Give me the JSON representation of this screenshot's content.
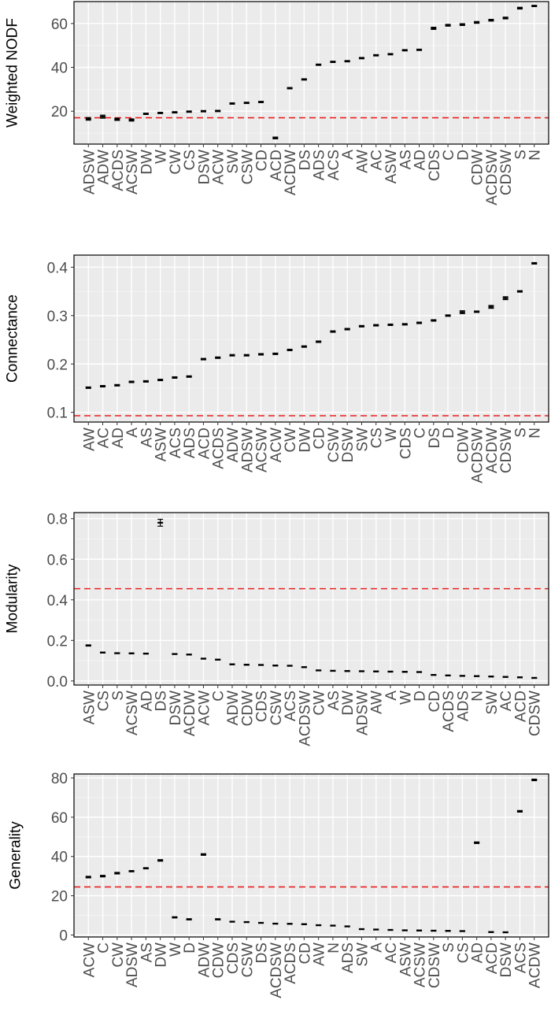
{
  "colors": {
    "panel_bg": "#ebebeb",
    "grid_major": "#ffffff",
    "grid_minor": "#f5f5f5",
    "reference_line": "#e8211f",
    "marker": "#000000",
    "tick_text": "#4d4d4d"
  },
  "chart_data": [
    {
      "type": "errorbar",
      "name": "nodf",
      "ylabel": "Weighted NODF",
      "ylim": [
        5,
        70
      ],
      "yticks": [
        20,
        40,
        60
      ],
      "reference_y": 17,
      "categories": [
        "ADSW",
        "ADW",
        "ACDS",
        "ACSW",
        "DW",
        "W",
        "CW",
        "CS",
        "DSW",
        "ACW",
        "SW",
        "CSW",
        "CD",
        "ACD",
        "ACDW",
        "DS",
        "ADS",
        "ACS",
        "A",
        "AW",
        "AC",
        "ASW",
        "AS",
        "AD",
        "CDS",
        "C",
        "D",
        "CDW",
        "ACDSW",
        "CDSW",
        "S",
        "N"
      ],
      "values": [
        16.5,
        17.5,
        16.3,
        16.0,
        18.8,
        19.2,
        19.5,
        19.8,
        20.0,
        20.1,
        23.5,
        23.8,
        24.2,
        7.8,
        30.5,
        34.5,
        41.2,
        42.5,
        42.8,
        44.2,
        45.5,
        46.0,
        47.8,
        48.0,
        57.8,
        59.2,
        59.5,
        60.5,
        61.5,
        62.5,
        67.0,
        68.0
      ],
      "errors": [
        0.6,
        0.7,
        0.5,
        0.5,
        0.3,
        0.3,
        0.3,
        0.3,
        0.3,
        0.3,
        0.3,
        0.3,
        0.3,
        0.4,
        0.3,
        0.3,
        0.3,
        0.3,
        0.3,
        0.3,
        0.3,
        0.3,
        0.3,
        0.3,
        0.5,
        0.4,
        0.4,
        0.4,
        0.4,
        0.4,
        0.4,
        0.3
      ]
    },
    {
      "type": "errorbar",
      "name": "connectance",
      "ylabel": "Connectance",
      "ylim": [
        0.08,
        0.425
      ],
      "yticks": [
        0.1,
        0.2,
        0.3,
        0.4
      ],
      "ytick_labels": [
        "0.1",
        "0.2",
        "0.3",
        "0.4"
      ],
      "reference_y": 0.093,
      "categories": [
        "AW",
        "AC",
        "AD",
        "A",
        "AS",
        "ASW",
        "ACS",
        "ADS",
        "ACD",
        "ACDS",
        "ADW",
        "ADSW",
        "ACSW",
        "ACW",
        "CW",
        "DW",
        "CD",
        "CSW",
        "DSW",
        "SW",
        "CS",
        "W",
        "CDS",
        "C",
        "DS",
        "D",
        "CDW",
        "ACDSW",
        "ACDW",
        "CDSW",
        "S",
        "N"
      ],
      "values": [
        0.151,
        0.154,
        0.156,
        0.163,
        0.164,
        0.167,
        0.172,
        0.174,
        0.21,
        0.213,
        0.218,
        0.218,
        0.22,
        0.221,
        0.229,
        0.236,
        0.246,
        0.267,
        0.272,
        0.278,
        0.28,
        0.281,
        0.282,
        0.285,
        0.29,
        0.3,
        0.307,
        0.308,
        0.318,
        0.336,
        0.35,
        0.408
      ],
      "errors": [
        0.0015,
        0.0015,
        0.0015,
        0.0015,
        0.0015,
        0.0015,
        0.0015,
        0.0015,
        0.0015,
        0.0015,
        0.0015,
        0.0015,
        0.0015,
        0.0015,
        0.0015,
        0.0015,
        0.0015,
        0.0015,
        0.0015,
        0.0015,
        0.0015,
        0.0015,
        0.0015,
        0.0015,
        0.0015,
        0.0015,
        0.003,
        0.0015,
        0.003,
        0.003,
        0.0015,
        0.0015
      ]
    },
    {
      "type": "errorbar",
      "name": "modularity",
      "ylabel": "Modularity",
      "ylim": [
        -0.02,
        0.83
      ],
      "yticks": [
        0.0,
        0.2,
        0.4,
        0.6,
        0.8
      ],
      "ytick_labels": [
        "0.0",
        "0.2",
        "0.4",
        "0.6",
        "0.8"
      ],
      "reference_y": 0.455,
      "categories": [
        "ASW",
        "CS",
        "S",
        "ACSW",
        "AD",
        "DS",
        "DSW",
        "ACDW",
        "ACW",
        "C",
        "ADW",
        "CDW",
        "CDS",
        "CSW",
        "ACS",
        "ACDSW",
        "CW",
        "AS",
        "DW",
        "ADSW",
        "AW",
        "A",
        "W",
        "D",
        "CD",
        "ACDS",
        "ADS",
        "N",
        "SW",
        "AC",
        "ACD",
        "CDSW"
      ],
      "values": [
        0.175,
        0.14,
        0.137,
        0.136,
        0.135,
        0.78,
        0.133,
        0.13,
        0.11,
        0.105,
        0.082,
        0.08,
        0.079,
        0.076,
        0.075,
        0.068,
        0.052,
        0.05,
        0.049,
        0.048,
        0.047,
        0.046,
        0.045,
        0.044,
        0.03,
        0.027,
        0.025,
        0.024,
        0.022,
        0.02,
        0.018,
        0.015
      ],
      "errors": [
        0.003,
        0.002,
        0.002,
        0.002,
        0.002,
        0.017,
        0.002,
        0.002,
        0.002,
        0.002,
        0.002,
        0.002,
        0.002,
        0.002,
        0.002,
        0.002,
        0.002,
        0.002,
        0.002,
        0.002,
        0.002,
        0.002,
        0.002,
        0.002,
        0.002,
        0.002,
        0.002,
        0.002,
        0.002,
        0.002,
        0.002,
        0.002
      ]
    },
    {
      "type": "errorbar",
      "name": "generality",
      "ylabel": "Generality",
      "ylim": [
        -1,
        82
      ],
      "yticks": [
        0,
        20,
        40,
        60,
        80
      ],
      "reference_y": 24.5,
      "categories": [
        "ACW",
        "C",
        "CW",
        "ADSW",
        "AS",
        "DW",
        "W",
        "D",
        "ADW",
        "CDW",
        "CDS",
        "CSW",
        "DS",
        "ACDSW",
        "ACDS",
        "CD",
        "AW",
        "N",
        "ADS",
        "SW",
        "A",
        "AC",
        "ASW",
        "ACSW",
        "CDSW",
        "S",
        "CS",
        "AD",
        "ACD",
        "DSW",
        "ACS",
        "ACDW"
      ],
      "values": [
        29.5,
        30.0,
        31.5,
        32.5,
        34.0,
        38.0,
        9.0,
        8.0,
        41.0,
        8.0,
        6.8,
        6.6,
        6.2,
        5.8,
        5.7,
        5.5,
        5.0,
        4.8,
        4.4,
        3.0,
        2.8,
        2.6,
        2.4,
        2.3,
        2.2,
        2.1,
        2.0,
        47.0,
        1.5,
        1.4,
        63.0,
        79.0
      ],
      "errors": [
        0.4,
        0.4,
        0.4,
        0.3,
        0.3,
        0.4,
        0.3,
        0.3,
        0.4,
        0.3,
        0.2,
        0.2,
        0.2,
        0.2,
        0.2,
        0.2,
        0.2,
        0.2,
        0.2,
        0.2,
        0.2,
        0.2,
        0.2,
        0.2,
        0.2,
        0.2,
        0.2,
        0.4,
        0.2,
        0.2,
        0.4,
        0.4
      ]
    }
  ]
}
